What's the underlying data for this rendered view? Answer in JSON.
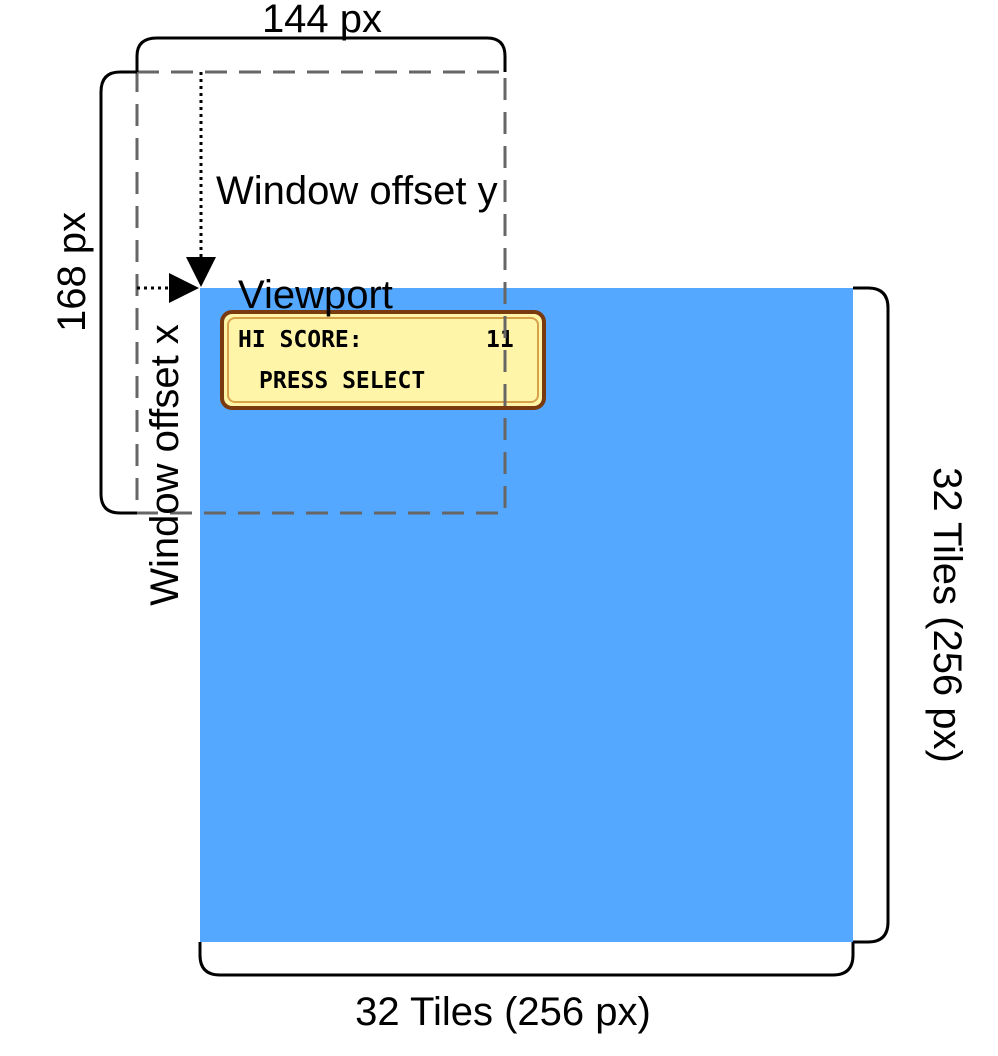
{
  "labels": {
    "window_width": "144 px",
    "window_height": "168 px",
    "window_offset_y": "Window offset y",
    "window_offset_x": "Window offset x",
    "viewport": "Viewport",
    "tiles_vertical": "32 Tiles (256 px)",
    "tiles_horizontal": "32 Tiles (256 px)"
  },
  "hud": {
    "score_label": "HI SCORE:",
    "score_value": "11",
    "prompt": "PRESS SELECT"
  },
  "colors": {
    "background_map": "#55a8ff",
    "hud_fill": "#fff5a8",
    "hud_border": "#7a3a10",
    "window_outline": "#666666",
    "ink": "#000000"
  }
}
